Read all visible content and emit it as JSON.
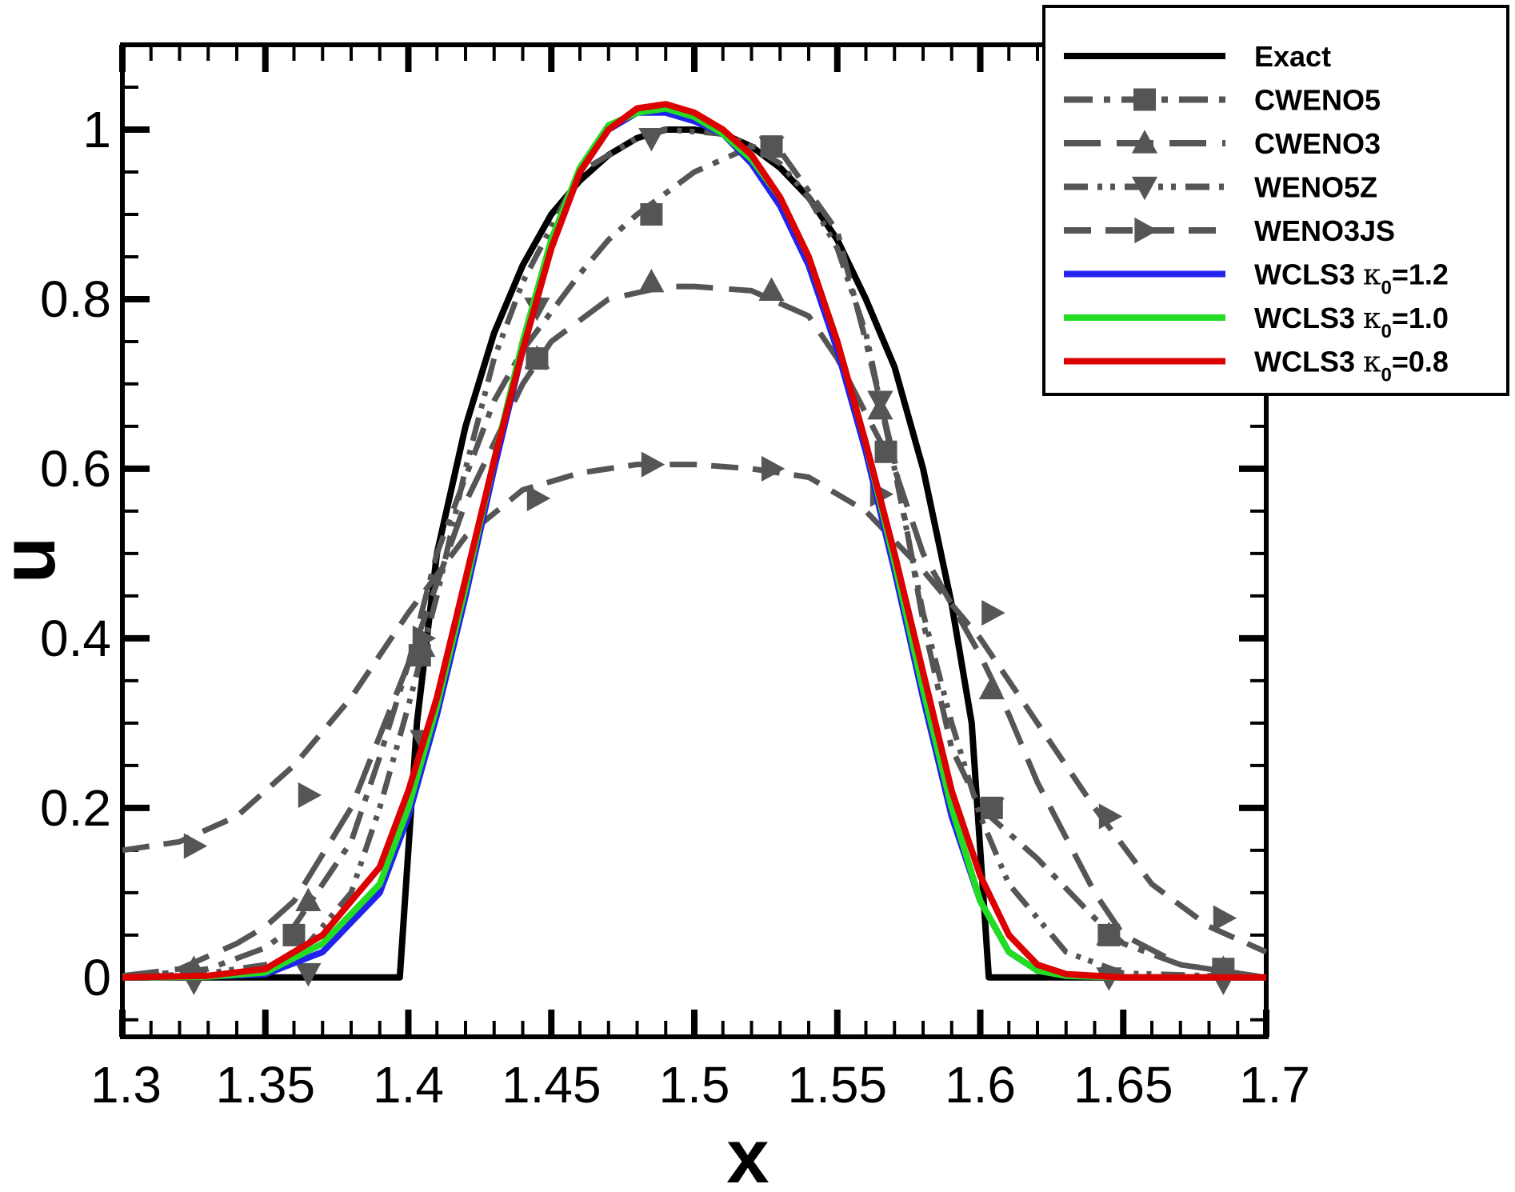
{
  "chart_data": {
    "type": "line",
    "title": "",
    "xlabel": "x",
    "ylabel": "u",
    "xlim": [
      1.3,
      1.7
    ],
    "ylim": [
      -0.07,
      1.1
    ],
    "grid": false,
    "legend_position": "top-right",
    "x_ticks": [
      "1.3",
      "1.35",
      "1.4",
      "1.45",
      "1.5",
      "1.55",
      "1.6",
      "1.65",
      "1.7"
    ],
    "y_ticks": [
      "0",
      "0.2",
      "0.4",
      "0.6",
      "0.8",
      "1"
    ],
    "series": [
      {
        "name": "Exact",
        "legend": {
          "label": "Exact",
          "kappa": "",
          "value": ""
        },
        "color": "#000000",
        "dash": "solid",
        "marker": "none",
        "x": [
          1.3,
          1.397,
          1.403,
          1.41,
          1.42,
          1.43,
          1.44,
          1.45,
          1.46,
          1.47,
          1.48,
          1.49,
          1.5,
          1.51,
          1.52,
          1.53,
          1.54,
          1.55,
          1.56,
          1.57,
          1.58,
          1.59,
          1.597,
          1.603,
          1.7
        ],
        "y": [
          0,
          0,
          0.3,
          0.5,
          0.65,
          0.76,
          0.84,
          0.9,
          0.94,
          0.97,
          0.99,
          1.0,
          1.0,
          0.995,
          0.98,
          0.955,
          0.92,
          0.87,
          0.8,
          0.72,
          0.6,
          0.44,
          0.3,
          0,
          0
        ]
      },
      {
        "name": "CWENO5",
        "legend": {
          "label": "CWENO5",
          "kappa": "",
          "value": ""
        },
        "color": "#555555",
        "dash": "dashdot",
        "marker": "square",
        "x": [
          1.3,
          1.33,
          1.35,
          1.36,
          1.38,
          1.39,
          1.4,
          1.41,
          1.43,
          1.44,
          1.46,
          1.47,
          1.48,
          1.5,
          1.52,
          1.53,
          1.55,
          1.56,
          1.57,
          1.58,
          1.59,
          1.6,
          1.61,
          1.62,
          1.64,
          1.65,
          1.67,
          1.69,
          1.7
        ],
        "y": [
          0,
          0.01,
          0.035,
          0.06,
          0.16,
          0.26,
          0.37,
          0.5,
          0.68,
          0.74,
          0.83,
          0.87,
          0.9,
          0.95,
          0.98,
          0.975,
          0.88,
          0.75,
          0.61,
          0.42,
          0.27,
          0.2,
          0.17,
          0.14,
          0.07,
          0.04,
          0.015,
          0.005,
          0
        ],
        "markers_x": [
          1.36,
          1.404,
          1.445,
          1.485,
          1.527,
          1.567,
          1.604,
          1.645,
          1.685
        ],
        "markers_y": [
          0.05,
          0.38,
          0.73,
          0.9,
          0.98,
          0.62,
          0.2,
          0.05,
          0.01
        ]
      },
      {
        "name": "CWENO3",
        "legend": {
          "label": "CWENO3",
          "kappa": "",
          "value": ""
        },
        "color": "#555555",
        "dash": "longdash",
        "marker": "triangle-up",
        "x": [
          1.3,
          1.32,
          1.34,
          1.35,
          1.36,
          1.38,
          1.4,
          1.42,
          1.44,
          1.45,
          1.47,
          1.49,
          1.5,
          1.52,
          1.54,
          1.55,
          1.57,
          1.58,
          1.6,
          1.61,
          1.62,
          1.64,
          1.65,
          1.67,
          1.7
        ],
        "y": [
          0.002,
          0.01,
          0.04,
          0.06,
          0.09,
          0.2,
          0.37,
          0.56,
          0.7,
          0.75,
          0.8,
          0.815,
          0.815,
          0.81,
          0.78,
          0.73,
          0.6,
          0.5,
          0.38,
          0.31,
          0.23,
          0.1,
          0.05,
          0.015,
          0
        ],
        "markers_x": [
          1.325,
          1.365,
          1.405,
          1.445,
          1.485,
          1.527,
          1.565,
          1.604,
          1.645,
          1.685
        ],
        "markers_y": [
          0.01,
          0.09,
          0.39,
          0.73,
          0.82,
          0.81,
          0.67,
          0.34,
          0.05,
          0.01
        ]
      },
      {
        "name": "WENO5Z",
        "legend": {
          "label": "WENO5Z",
          "kappa": "",
          "value": ""
        },
        "color": "#555555",
        "dash": "dashdotdot",
        "marker": "triangle-down",
        "x": [
          1.3,
          1.33,
          1.36,
          1.38,
          1.39,
          1.4,
          1.41,
          1.42,
          1.43,
          1.44,
          1.46,
          1.48,
          1.49,
          1.51,
          1.52,
          1.53,
          1.54,
          1.55,
          1.56,
          1.57,
          1.58,
          1.59,
          1.6,
          1.61,
          1.63,
          1.65,
          1.7
        ],
        "y": [
          0,
          0.005,
          0.02,
          0.1,
          0.2,
          0.32,
          0.45,
          0.6,
          0.73,
          0.82,
          0.95,
          0.99,
          1.0,
          0.995,
          0.98,
          0.96,
          0.92,
          0.86,
          0.76,
          0.6,
          0.43,
          0.3,
          0.19,
          0.11,
          0.03,
          0.005,
          0
        ],
        "markers_x": [
          1.325,
          1.365,
          1.405,
          1.445,
          1.485,
          1.527,
          1.565,
          1.604,
          1.645,
          1.685
        ],
        "markers_y": [
          -0.005,
          0.005,
          0.28,
          0.79,
          0.99,
          0.98,
          0.68,
          0.2,
          0.0,
          -0.005
        ]
      },
      {
        "name": "WENO3JS",
        "legend": {
          "label": "WENO3JS",
          "kappa": "",
          "value": ""
        },
        "color": "#555555",
        "dash": "dashed",
        "marker": "triangle-right",
        "x": [
          1.3,
          1.32,
          1.34,
          1.36,
          1.38,
          1.4,
          1.42,
          1.44,
          1.46,
          1.48,
          1.5,
          1.52,
          1.54,
          1.56,
          1.58,
          1.6,
          1.62,
          1.64,
          1.66,
          1.68,
          1.7
        ],
        "y": [
          0.15,
          0.16,
          0.19,
          0.25,
          0.33,
          0.43,
          0.52,
          0.575,
          0.595,
          0.605,
          0.605,
          0.6,
          0.59,
          0.55,
          0.48,
          0.4,
          0.3,
          0.2,
          0.11,
          0.06,
          0.03
        ],
        "markers_x": [
          1.325,
          1.365,
          1.405,
          1.445,
          1.485,
          1.527,
          1.565,
          1.604,
          1.645,
          1.685
        ],
        "markers_y": [
          0.155,
          0.215,
          0.4,
          0.565,
          0.605,
          0.6,
          0.57,
          0.43,
          0.19,
          0.07
        ]
      },
      {
        "name": "WCLS3 κ0=1.2",
        "legend": {
          "label": "WCLS3 ",
          "kappa": "κ",
          "value": "=1.2"
        },
        "color": "#2222ee",
        "dash": "solid",
        "marker": "none",
        "x": [
          1.3,
          1.33,
          1.35,
          1.37,
          1.39,
          1.4,
          1.41,
          1.42,
          1.43,
          1.44,
          1.45,
          1.46,
          1.47,
          1.48,
          1.49,
          1.5,
          1.51,
          1.52,
          1.53,
          1.54,
          1.55,
          1.56,
          1.57,
          1.58,
          1.59,
          1.6,
          1.61,
          1.62,
          1.63,
          1.65,
          1.7
        ],
        "y": [
          0,
          0.001,
          0.004,
          0.03,
          0.1,
          0.19,
          0.31,
          0.45,
          0.6,
          0.74,
          0.86,
          0.95,
          1.0,
          1.02,
          1.02,
          1.01,
          0.995,
          0.96,
          0.91,
          0.84,
          0.74,
          0.62,
          0.48,
          0.33,
          0.19,
          0.09,
          0.03,
          0.008,
          0.002,
          0,
          0
        ]
      },
      {
        "name": "WCLS3 κ0=1.0",
        "legend": {
          "label": "WCLS3 ",
          "kappa": "κ",
          "value": "=1.0"
        },
        "color": "#22dd22",
        "dash": "solid",
        "marker": "none",
        "x": [
          1.3,
          1.33,
          1.35,
          1.37,
          1.39,
          1.4,
          1.41,
          1.42,
          1.43,
          1.44,
          1.45,
          1.46,
          1.47,
          1.48,
          1.49,
          1.5,
          1.51,
          1.52,
          1.53,
          1.54,
          1.55,
          1.56,
          1.57,
          1.58,
          1.59,
          1.6,
          1.61,
          1.62,
          1.63,
          1.65,
          1.7
        ],
        "y": [
          0,
          0.001,
          0.006,
          0.04,
          0.11,
          0.2,
          0.32,
          0.46,
          0.61,
          0.75,
          0.87,
          0.955,
          1.005,
          1.02,
          1.025,
          1.015,
          0.995,
          0.965,
          0.92,
          0.85,
          0.75,
          0.63,
          0.49,
          0.34,
          0.2,
          0.09,
          0.03,
          0.008,
          0.002,
          0,
          0
        ]
      },
      {
        "name": "WCLS3 κ0=0.8",
        "legend": {
          "label": "WCLS3 ",
          "kappa": "κ",
          "value": "=0.8"
        },
        "color": "#dd0000",
        "dash": "solid",
        "marker": "none",
        "x": [
          1.3,
          1.33,
          1.35,
          1.37,
          1.39,
          1.4,
          1.41,
          1.42,
          1.43,
          1.44,
          1.45,
          1.46,
          1.47,
          1.48,
          1.49,
          1.5,
          1.51,
          1.52,
          1.53,
          1.54,
          1.55,
          1.56,
          1.57,
          1.58,
          1.59,
          1.6,
          1.61,
          1.62,
          1.63,
          1.65,
          1.7
        ],
        "y": [
          0,
          0.002,
          0.01,
          0.05,
          0.13,
          0.22,
          0.33,
          0.47,
          0.61,
          0.74,
          0.86,
          0.95,
          1.0,
          1.025,
          1.03,
          1.02,
          1.0,
          0.97,
          0.92,
          0.85,
          0.75,
          0.63,
          0.5,
          0.36,
          0.22,
          0.12,
          0.05,
          0.015,
          0.004,
          0,
          0
        ]
      }
    ]
  },
  "legend": {
    "kappa_subscript": "0"
  }
}
